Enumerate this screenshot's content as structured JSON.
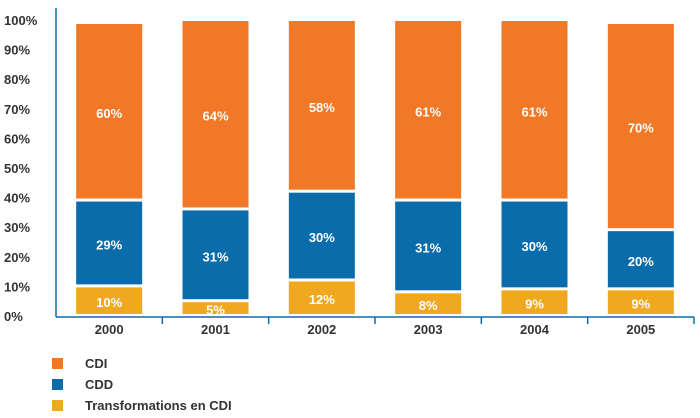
{
  "chart_data": {
    "type": "bar",
    "stacked": true,
    "categories": [
      "2000",
      "2001",
      "2002",
      "2003",
      "2004",
      "2005"
    ],
    "series": [
      {
        "name": "Transformations en CDI",
        "color": "#F0A81E",
        "values": [
          10,
          5,
          12,
          8,
          9,
          9
        ],
        "labels": [
          "10%",
          "5%",
          "12%",
          "8%",
          "9%",
          "9%"
        ]
      },
      {
        "name": "CDD",
        "color": "#0A6CAB",
        "values": [
          29,
          31,
          30,
          31,
          30,
          20
        ],
        "labels": [
          "29%",
          "31%",
          "30%",
          "31%",
          "30%",
          "20%"
        ]
      },
      {
        "name": "CDI",
        "color": "#F07826",
        "values": [
          60,
          64,
          58,
          61,
          61,
          70
        ],
        "labels": [
          "60%",
          "64%",
          "58%",
          "61%",
          "61%",
          "70%"
        ]
      }
    ],
    "legend_order": [
      "CDI",
      "CDD",
      "Transformations en CDI"
    ],
    "yticks": [
      "0%",
      "10%",
      "20%",
      "30%",
      "40%",
      "50%",
      "60%",
      "70%",
      "80%",
      "90%",
      "100%"
    ],
    "ylim": [
      0,
      100
    ],
    "legend_position": "bottom-left",
    "grid": false,
    "title": "",
    "xlabel": "",
    "ylabel": ""
  }
}
